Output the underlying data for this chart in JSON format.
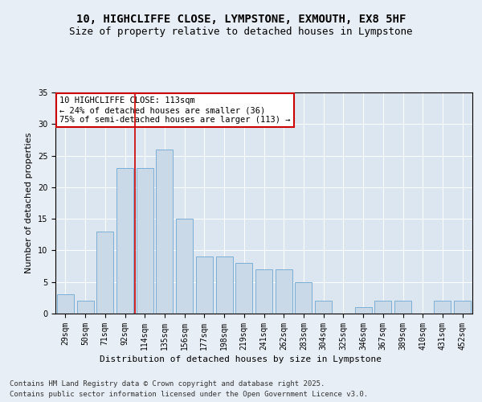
{
  "title_line1": "10, HIGHCLIFFE CLOSE, LYMPSTONE, EXMOUTH, EX8 5HF",
  "title_line2": "Size of property relative to detached houses in Lympstone",
  "xlabel": "Distribution of detached houses by size in Lympstone",
  "ylabel": "Number of detached properties",
  "categories": [
    "29sqm",
    "50sqm",
    "71sqm",
    "92sqm",
    "114sqm",
    "135sqm",
    "156sqm",
    "177sqm",
    "198sqm",
    "219sqm",
    "241sqm",
    "262sqm",
    "283sqm",
    "304sqm",
    "325sqm",
    "346sqm",
    "367sqm",
    "389sqm",
    "410sqm",
    "431sqm",
    "452sqm"
  ],
  "values": [
    3,
    2,
    13,
    23,
    23,
    26,
    15,
    9,
    9,
    8,
    7,
    7,
    5,
    2,
    0,
    1,
    2,
    2,
    0,
    2,
    2
  ],
  "bar_color": "#c9d9e8",
  "bar_edge_color": "#7bafd4",
  "vline_x": 3.5,
  "vline_color": "#cc0000",
  "annotation_text": "10 HIGHCLIFFE CLOSE: 113sqm\n← 24% of detached houses are smaller (36)\n75% of semi-detached houses are larger (113) →",
  "annotation_box_color": "#ffffff",
  "annotation_box_edge": "#cc0000",
  "ylim": [
    0,
    35
  ],
  "yticks": [
    0,
    5,
    10,
    15,
    20,
    25,
    30,
    35
  ],
  "background_color": "#dce6f0",
  "fig_background_color": "#e8eef5",
  "footer_line1": "Contains HM Land Registry data © Crown copyright and database right 2025.",
  "footer_line2": "Contains public sector information licensed under the Open Government Licence v3.0.",
  "title_fontsize": 10,
  "subtitle_fontsize": 9,
  "axis_label_fontsize": 8,
  "tick_fontsize": 7,
  "annotation_fontsize": 7.5,
  "footer_fontsize": 6.5
}
